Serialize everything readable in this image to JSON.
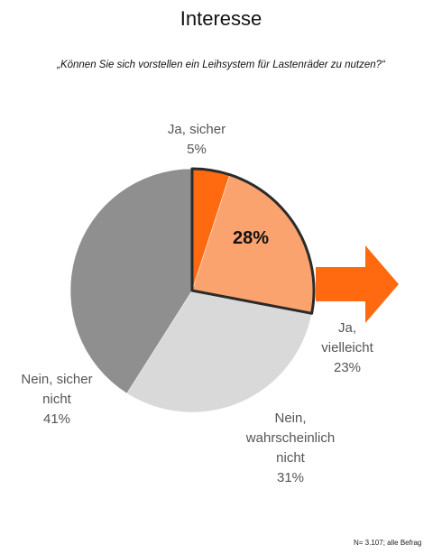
{
  "chart_data": {
    "type": "pie",
    "title": "Interesse",
    "subtitle": "„Können Sie sich vorstellen ein Leihsystem für Lastenräder zu nutzen?“",
    "categories": [
      "Ja, sicher",
      "Ja, vielleicht",
      "Nein, wahrscheinlich nicht",
      "Nein, sicher nicht"
    ],
    "values": [
      5,
      23,
      31,
      41
    ],
    "value_labels": [
      "5%",
      "23%",
      "31%",
      "41%"
    ],
    "colors": [
      "#ff6a10",
      "#fba36f",
      "#d9d9d9",
      "#8f8f8f"
    ],
    "annotation": "28%",
    "footnote": "N= 3.107; alle Befrag"
  }
}
